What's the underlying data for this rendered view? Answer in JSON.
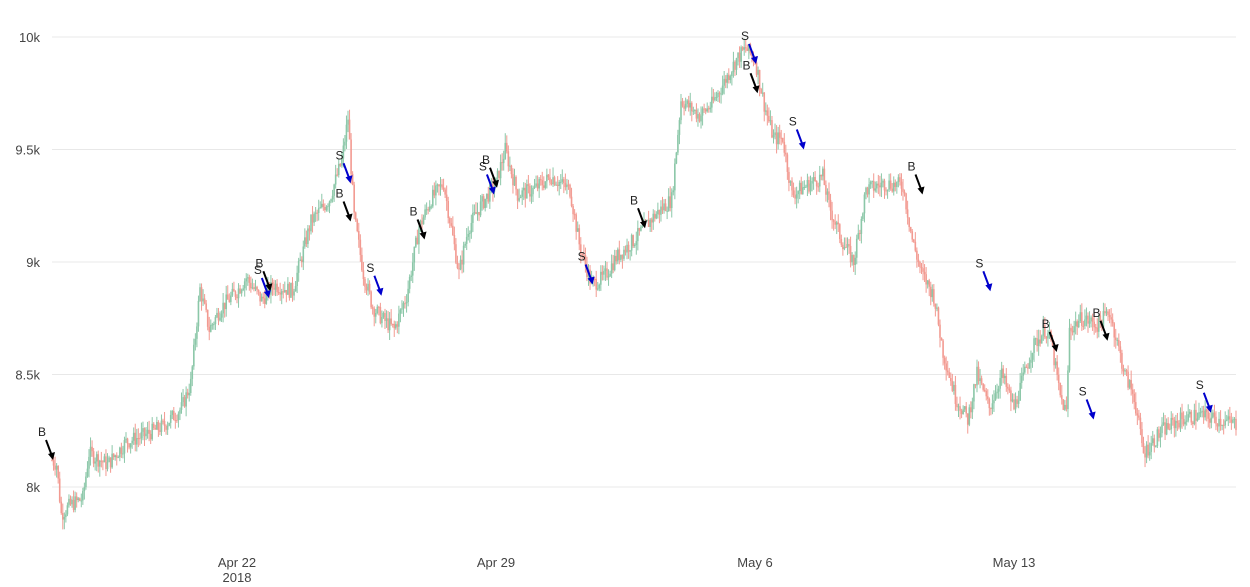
{
  "chart_data": {
    "type": "candlestick",
    "title": "",
    "xlabel": "",
    "ylabel": "",
    "x_range": [
      "2018-04-17",
      "2018-05-19"
    ],
    "ylim": [
      7780,
      10070
    ],
    "y_ticks": [
      {
        "value": 8000,
        "label": "8k"
      },
      {
        "value": 8500,
        "label": "8.5k"
      },
      {
        "value": 9000,
        "label": "9k"
      },
      {
        "value": 9500,
        "label": "9.5k"
      },
      {
        "value": 10000,
        "label": "10k"
      }
    ],
    "x_ticks": [
      {
        "date": "2018-04-22",
        "label": "Apr 22",
        "sublabel": "2018"
      },
      {
        "date": "2018-04-29",
        "label": "Apr 29",
        "sublabel": ""
      },
      {
        "date": "2018-05-06",
        "label": "May 6",
        "sublabel": ""
      },
      {
        "date": "2018-05-13",
        "label": "May 13",
        "sublabel": ""
      }
    ],
    "grid": "horizontal",
    "increasing_color": "#8bc7a8",
    "decreasing_color": "#f29a91",
    "price_path": [
      [
        "2018-04-17T00:00",
        8120
      ],
      [
        "2018-04-17T03:00",
        8100
      ],
      [
        "2018-04-17T06:00",
        7880
      ],
      [
        "2018-04-17T12:00",
        7920
      ],
      [
        "2018-04-17T20:00",
        7950
      ],
      [
        "2018-04-18T00:00",
        8150
      ],
      [
        "2018-04-18T12:00",
        8100
      ],
      [
        "2018-04-19T00:00",
        8200
      ],
      [
        "2018-04-19T12:00",
        8230
      ],
      [
        "2018-04-20T00:00",
        8270
      ],
      [
        "2018-04-20T12:00",
        8350
      ],
      [
        "2018-04-20T18:00",
        8460
      ],
      [
        "2018-04-21T00:00",
        8880
      ],
      [
        "2018-04-21T06:00",
        8700
      ],
      [
        "2018-04-21T14:00",
        8800
      ],
      [
        "2018-04-22T00:00",
        8870
      ],
      [
        "2018-04-22T06:00",
        8930
      ],
      [
        "2018-04-22T16:00",
        8830
      ],
      [
        "2018-04-23T00:00",
        8900
      ],
      [
        "2018-04-23T12:00",
        8870
      ],
      [
        "2018-04-24T00:00",
        9180
      ],
      [
        "2018-04-24T12:00",
        9280
      ],
      [
        "2018-04-24T20:00",
        9450
      ],
      [
        "2018-04-25T00:00",
        9640
      ],
      [
        "2018-04-25T04:00",
        9200
      ],
      [
        "2018-04-25T10:00",
        8950
      ],
      [
        "2018-04-25T16:00",
        8800
      ],
      [
        "2018-04-25T22:00",
        8750
      ],
      [
        "2018-04-26T06:00",
        8700
      ],
      [
        "2018-04-26T14:00",
        8850
      ],
      [
        "2018-04-26T22:00",
        9150
      ],
      [
        "2018-04-27T06:00",
        9280
      ],
      [
        "2018-04-27T14:00",
        9350
      ],
      [
        "2018-04-28T00:00",
        8950
      ],
      [
        "2018-04-28T06:00",
        9150
      ],
      [
        "2018-04-28T14:00",
        9250
      ],
      [
        "2018-04-29T00:00",
        9350
      ],
      [
        "2018-04-29T06:00",
        9500
      ],
      [
        "2018-04-29T14:00",
        9300
      ],
      [
        "2018-04-30T00:00",
        9320
      ],
      [
        "2018-04-30T12:00",
        9380
      ],
      [
        "2018-05-01T00:00",
        9320
      ],
      [
        "2018-05-01T06:00",
        9080
      ],
      [
        "2018-05-01T14:00",
        8900
      ],
      [
        "2018-05-01T22:00",
        8930
      ],
      [
        "2018-05-02T06:00",
        9020
      ],
      [
        "2018-05-02T18:00",
        9100
      ],
      [
        "2018-05-03T06:00",
        9200
      ],
      [
        "2018-05-03T18:00",
        9280
      ],
      [
        "2018-05-04T00:00",
        9720
      ],
      [
        "2018-05-04T12:00",
        9650
      ],
      [
        "2018-05-04T20:00",
        9700
      ],
      [
        "2018-05-05T00:00",
        9750
      ],
      [
        "2018-05-05T12:00",
        9900
      ],
      [
        "2018-05-05T18:00",
        9950
      ],
      [
        "2018-05-06T00:00",
        9900
      ],
      [
        "2018-05-06T06:00",
        9700
      ],
      [
        "2018-05-06T12:00",
        9550
      ],
      [
        "2018-05-06T18:00",
        9550
      ],
      [
        "2018-05-07T00:00",
        9300
      ],
      [
        "2018-05-07T12:00",
        9350
      ],
      [
        "2018-05-07T20:00",
        9380
      ],
      [
        "2018-05-08T00:00",
        9250
      ],
      [
        "2018-05-08T08:00",
        9100
      ],
      [
        "2018-05-08T16:00",
        9000
      ],
      [
        "2018-05-09T00:00",
        9320
      ],
      [
        "2018-05-09T12:00",
        9350
      ],
      [
        "2018-05-10T00:00",
        9340
      ],
      [
        "2018-05-10T06:00",
        9100
      ],
      [
        "2018-05-10T12:00",
        8950
      ],
      [
        "2018-05-10T20:00",
        8850
      ],
      [
        "2018-05-11T02:00",
        8600
      ],
      [
        "2018-05-11T10:00",
        8400
      ],
      [
        "2018-05-11T18:00",
        8300
      ],
      [
        "2018-05-12T00:00",
        8500
      ],
      [
        "2018-05-12T08:00",
        8350
      ],
      [
        "2018-05-12T16:00",
        8500
      ],
      [
        "2018-05-13T00:00",
        8350
      ],
      [
        "2018-05-13T12:00",
        8620
      ],
      [
        "2018-05-13T20:00",
        8700
      ],
      [
        "2018-05-14T00:00",
        8650
      ],
      [
        "2018-05-14T06:00",
        8400
      ],
      [
        "2018-05-14T10:00",
        8330
      ],
      [
        "2018-05-14T12:00",
        8700
      ],
      [
        "2018-05-14T20:00",
        8750
      ],
      [
        "2018-05-15T06:00",
        8720
      ],
      [
        "2018-05-15T14:00",
        8780
      ],
      [
        "2018-05-16T00:00",
        8500
      ],
      [
        "2018-05-16T06:00",
        8400
      ],
      [
        "2018-05-16T12:00",
        8150
      ],
      [
        "2018-05-17T00:00",
        8250
      ],
      [
        "2018-05-17T12:00",
        8300
      ],
      [
        "2018-05-18T00:00",
        8320
      ],
      [
        "2018-05-18T12:00",
        8300
      ],
      [
        "2018-05-19T00:00",
        8280
      ]
    ],
    "markers": [
      {
        "type": "buy",
        "label": "B",
        "date": "2018-04-17T00:00",
        "price": 8120
      },
      {
        "type": "buy",
        "label": "B",
        "date": "2018-04-22T21:00",
        "price": 8870
      },
      {
        "type": "sell",
        "label": "S",
        "date": "2018-04-22T20:00",
        "price": 8840
      },
      {
        "type": "sell",
        "label": "S",
        "date": "2018-04-25T01:00",
        "price": 9350
      },
      {
        "type": "buy",
        "label": "B",
        "date": "2018-04-25T01:00",
        "price": 9180
      },
      {
        "type": "sell",
        "label": "S",
        "date": "2018-04-25T21:00",
        "price": 8850
      },
      {
        "type": "buy",
        "label": "B",
        "date": "2018-04-27T01:00",
        "price": 9100
      },
      {
        "type": "sell",
        "label": "S",
        "date": "2018-04-28T22:00",
        "price": 9300
      },
      {
        "type": "buy",
        "label": "B",
        "date": "2018-04-29T00:00",
        "price": 9330
      },
      {
        "type": "sell",
        "label": "S",
        "date": "2018-05-01T14:00",
        "price": 8900
      },
      {
        "type": "buy",
        "label": "B",
        "date": "2018-05-03T00:00",
        "price": 9150
      },
      {
        "type": "sell",
        "label": "S",
        "date": "2018-05-06T00:00",
        "price": 9880
      },
      {
        "type": "buy",
        "label": "B",
        "date": "2018-05-06T01:00",
        "price": 9750
      },
      {
        "type": "sell",
        "label": "S",
        "date": "2018-05-07T07:00",
        "price": 9500
      },
      {
        "type": "buy",
        "label": "B",
        "date": "2018-05-10T12:00",
        "price": 9300
      },
      {
        "type": "sell",
        "label": "S",
        "date": "2018-05-12T08:00",
        "price": 8870
      },
      {
        "type": "buy",
        "label": "B",
        "date": "2018-05-14T03:00",
        "price": 8600
      },
      {
        "type": "sell",
        "label": "S",
        "date": "2018-05-15T03:00",
        "price": 8300
      },
      {
        "type": "buy",
        "label": "B",
        "date": "2018-05-15T12:00",
        "price": 8650
      },
      {
        "type": "sell",
        "label": "S",
        "date": "2018-05-18T07:00",
        "price": 8330
      }
    ],
    "buy_marker_color": "#000000",
    "sell_marker_color": "#0000cc"
  }
}
